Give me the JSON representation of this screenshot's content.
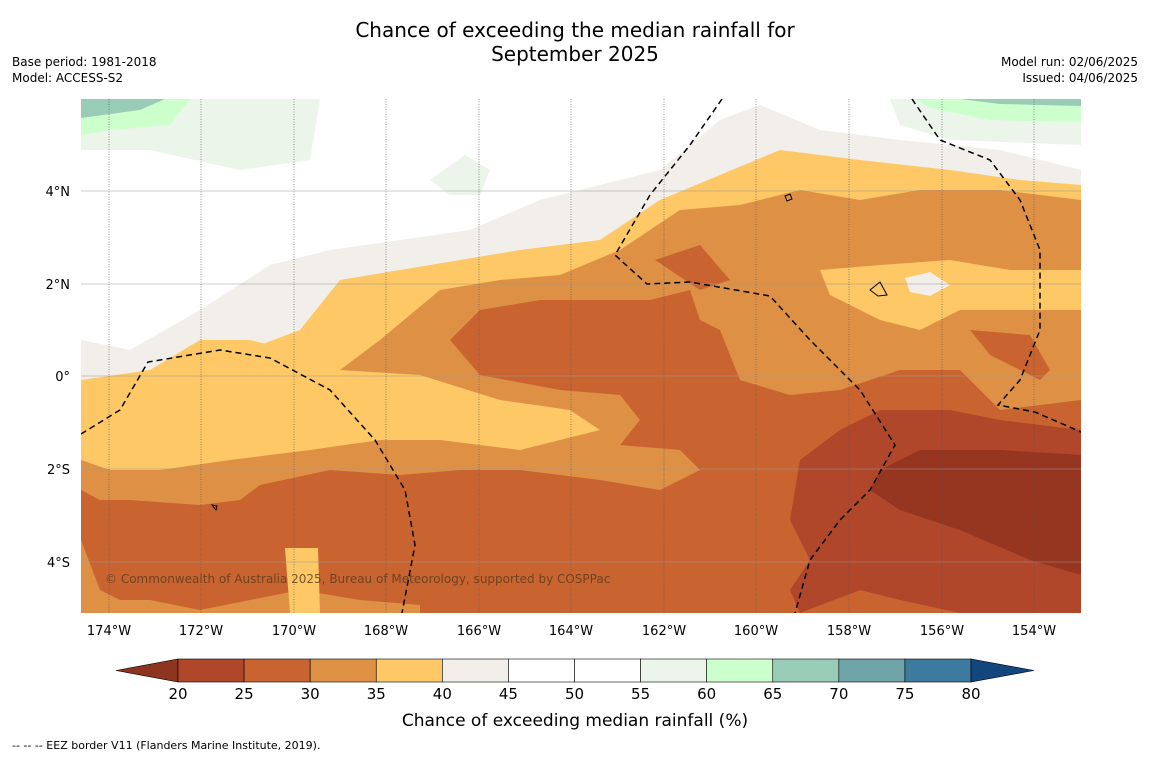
{
  "title_line1": "Chance of exceeding the median rainfall for",
  "title_line2": "September 2025",
  "left_meta": {
    "base_period": "Base period: 1981-2018",
    "model": "Model: ACCESS-S2"
  },
  "right_meta": {
    "model_run": "Model run: 02/06/2025",
    "issued": "Issued: 04/06/2025"
  },
  "copyright": "© Commonwealth of Australia 2025, Bureau of Meteorology, supported by COSPPac",
  "lon_labels": [
    "174°W",
    "172°W",
    "170°W",
    "168°W",
    "166°W",
    "164°W",
    "162°W",
    "160°W",
    "158°W",
    "156°W",
    "154°W"
  ],
  "lat_labels": [
    "4°N",
    "2°N",
    "0°",
    "2°S",
    "4°S"
  ],
  "colorbar": {
    "label": "Chance of exceeding median rainfall (%)",
    "ticks": [
      "20",
      "25",
      "30",
      "35",
      "40",
      "45",
      "50",
      "55",
      "60",
      "65",
      "70",
      "75",
      "80"
    ],
    "colors": [
      "#b0462a",
      "#c96431",
      "#de9144",
      "#fdc865",
      "#f2eee9",
      "#ffffff",
      "#ffffff",
      "#ebf5ea",
      "#ccffcc",
      "#99ccb6",
      "#6fa4a9",
      "#3d7aa0"
    ],
    "under_color": "#8e3520",
    "over_color": "#12467f"
  },
  "footer": "--  --  -- EEZ border V11 (Flanders Marine Institute, 2019).",
  "legend_sample_colors": {
    "driest": "#963520",
    "dry": "#b0462a"
  }
}
